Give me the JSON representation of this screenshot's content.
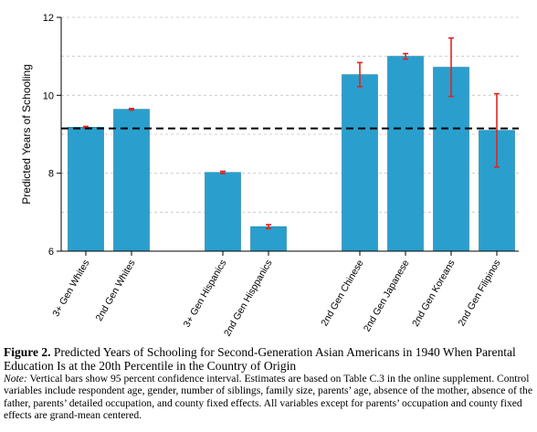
{
  "chart_data": {
    "type": "bar",
    "ylabel": "Predicted Years of Schooling",
    "ylim": [
      6,
      12
    ],
    "yticks": [
      6,
      8,
      10,
      12
    ],
    "grid": true,
    "reference_line": 9.15,
    "categories": [
      "3+ Gen Whites",
      "2nd Gen Whites",
      "3+ Gen Hispanics",
      "2nd Gen Hisppanics",
      "2nd Gen Chinese",
      "2nd Gen Japanese",
      "2nd Gen Koreans",
      "2nd Gen Filipinos"
    ],
    "groups": [
      [
        0,
        1
      ],
      [
        2,
        3
      ],
      [
        4,
        5,
        6,
        7
      ]
    ],
    "values": [
      9.18,
      9.64,
      8.02,
      6.63,
      10.53,
      11.0,
      10.72,
      9.1
    ],
    "ci": [
      [
        9.16,
        9.2
      ],
      [
        9.62,
        9.66
      ],
      [
        7.99,
        8.05
      ],
      [
        6.58,
        6.68
      ],
      [
        10.22,
        10.84
      ],
      [
        10.93,
        11.07
      ],
      [
        9.97,
        11.47
      ],
      [
        8.16,
        10.04
      ]
    ],
    "bar_color": "#2a9fcd",
    "error_color": "#e0251f"
  },
  "caption": {
    "label": "Figure 2.",
    "title": "Predicted Years of Schooling for Second-Generation Asian Americans in 1940 When Parental Education Is at the 20th Percentile in the Country of Origin",
    "note_label": "Note:",
    "note": "Vertical bars show 95 percent confidence interval. Estimates are based on Table C.3 in the online supplement. Control variables include respondent age, gender, number of siblings, family size, parents’ age, absence of the mother, absence of the father, parents’ detailed occupation, and county fixed effects. All variables except for parents’ occupation and county fixed effects are grand-mean centered."
  }
}
